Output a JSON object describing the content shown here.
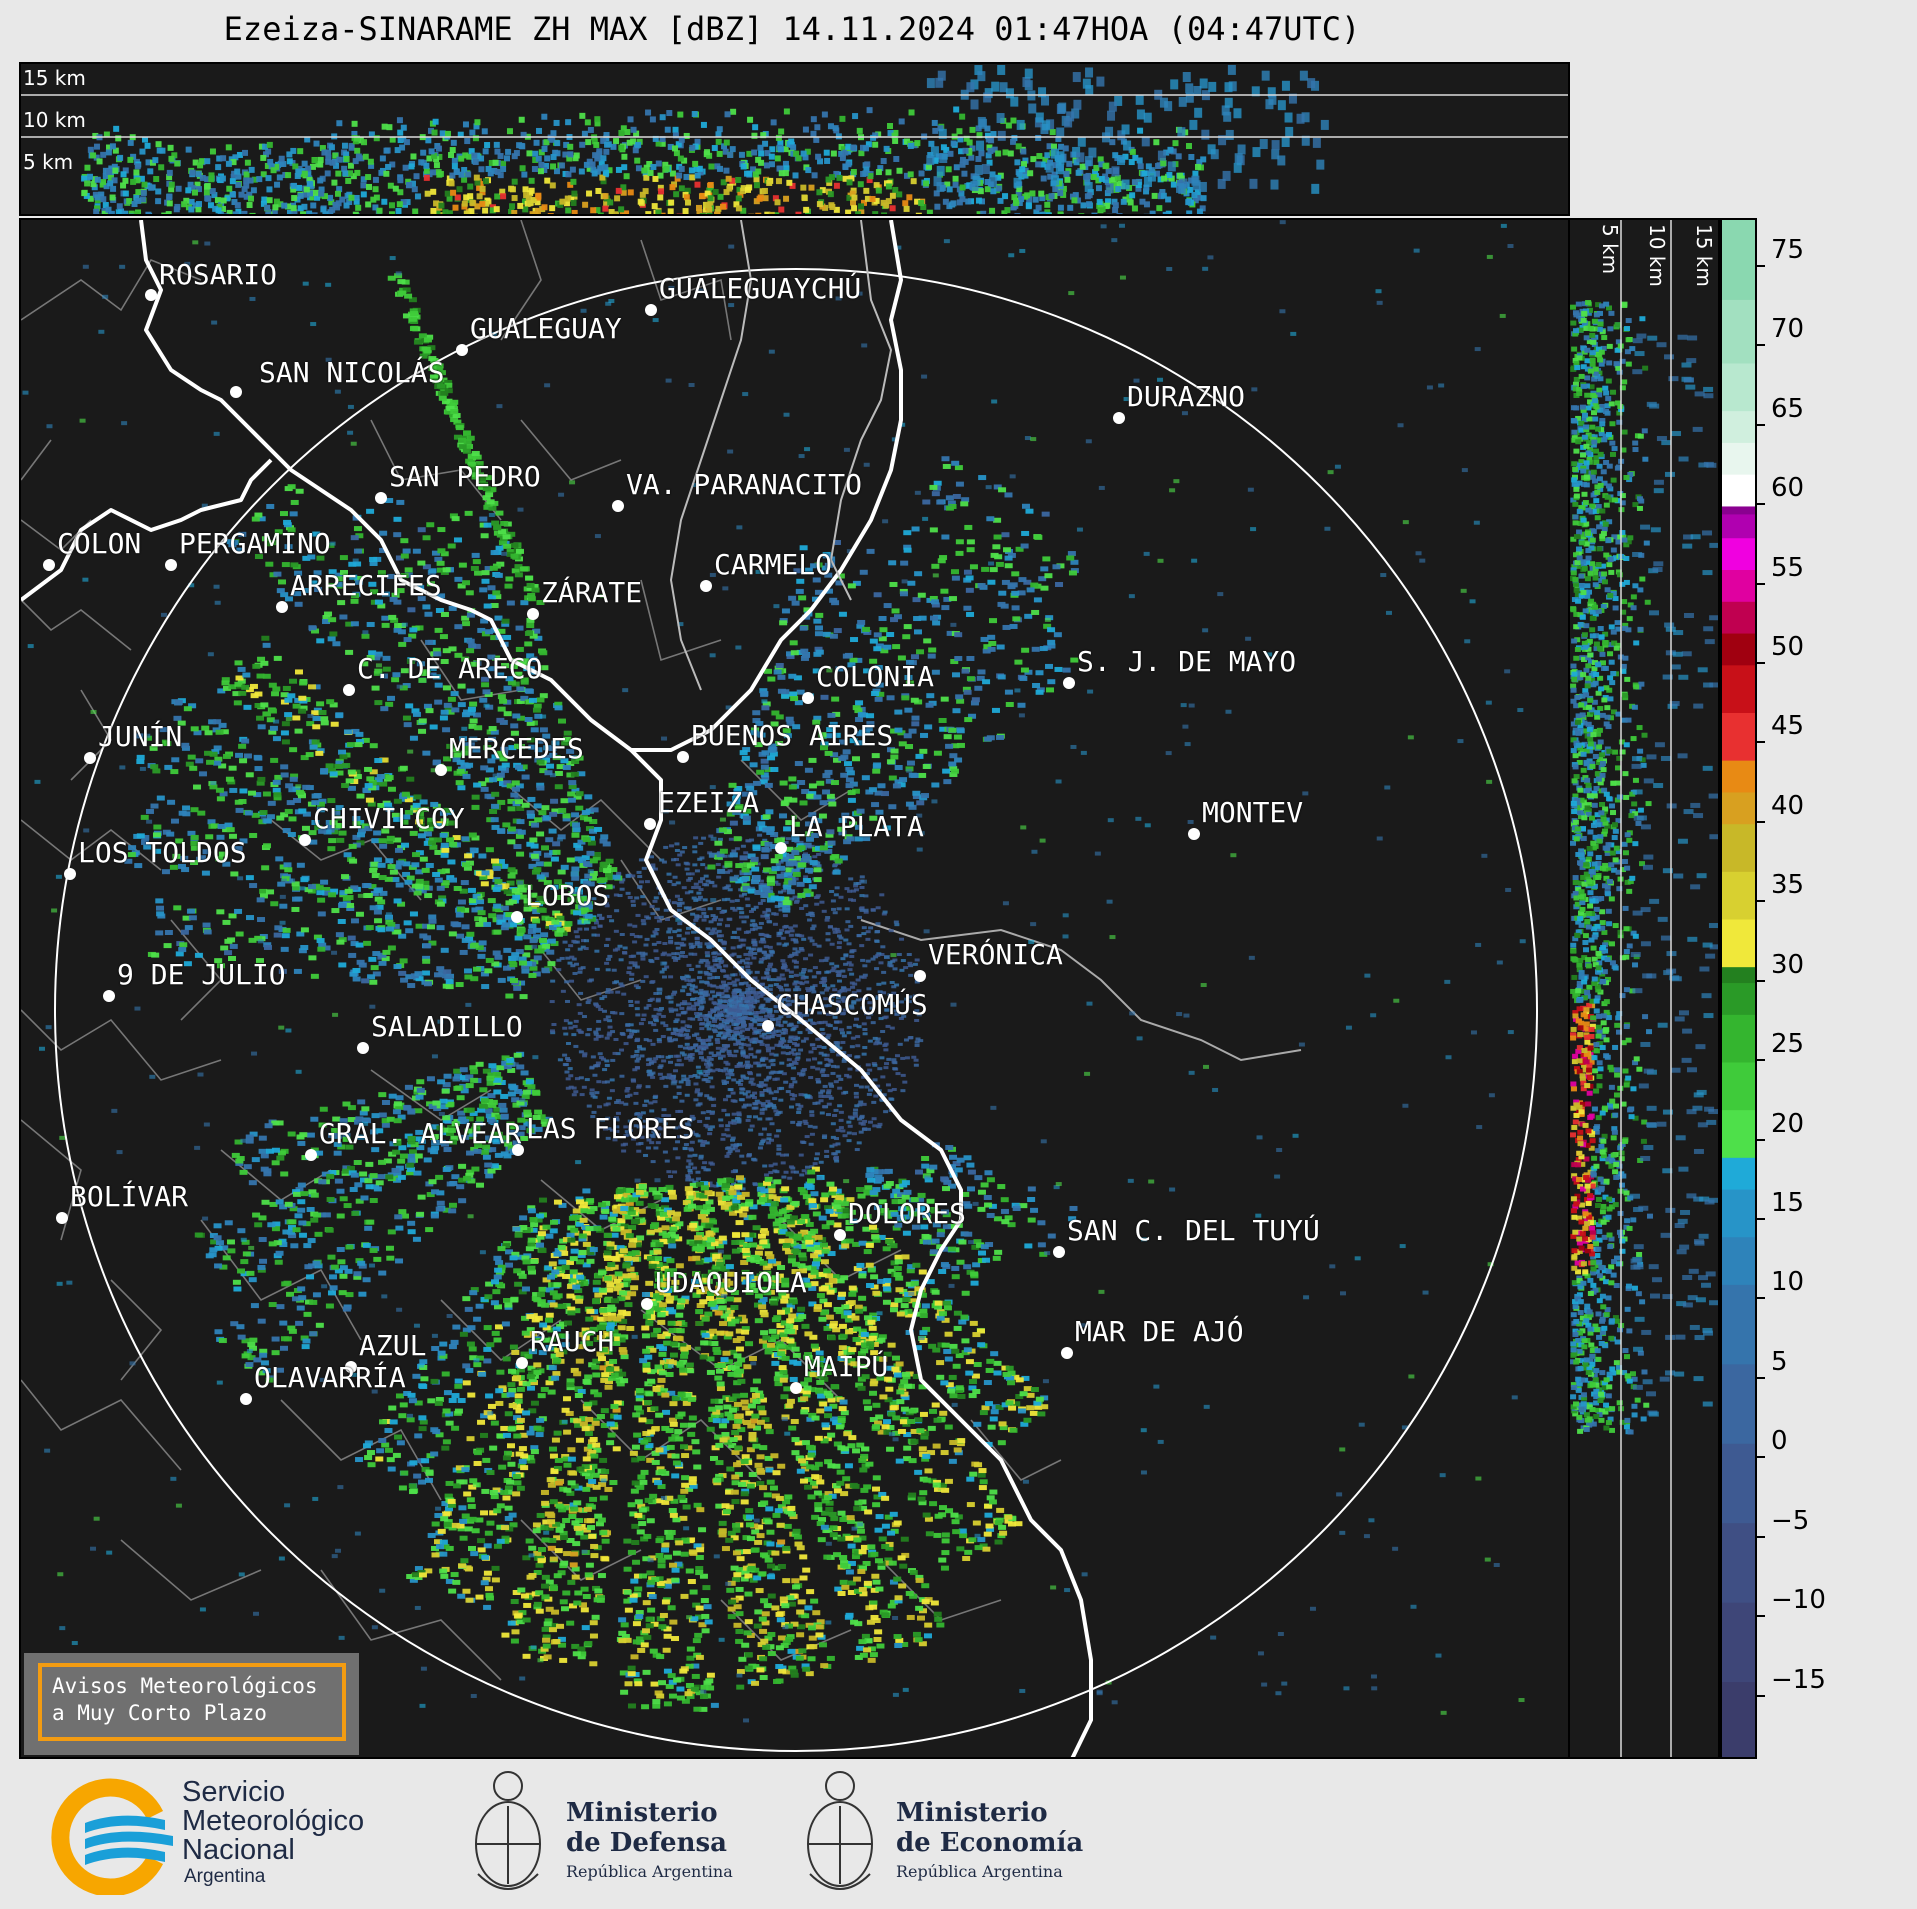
{
  "title": "Ezeiza-SINARAME ZH MAX [dBZ] 14.11.2024 01:47HOA (04:47UTC)",
  "top_panel": {
    "altitude_labels": [
      "15 km",
      "10 km",
      "5 km"
    ]
  },
  "side_panel": {
    "altitude_labels": [
      "5 km",
      "10 km",
      "15 km"
    ]
  },
  "colorbar": {
    "unit": "dBZ",
    "ticks": [
      "75",
      "70",
      "65",
      "60",
      "55",
      "50",
      "45",
      "40",
      "35",
      "30",
      "25",
      "20",
      "15",
      "10",
      "5",
      "0",
      "−5",
      "−10",
      "−15"
    ],
    "tick_values": [
      75,
      70,
      65,
      60,
      55,
      50,
      45,
      40,
      35,
      30,
      25,
      20,
      15,
      10,
      5,
      0,
      -5,
      -10,
      -15
    ],
    "range": [
      -20,
      77
    ]
  },
  "cities": [
    {
      "name": "ROSARIO"
    },
    {
      "name": "GUALEGUAYCHÚ"
    },
    {
      "name": "GUALEGUAY"
    },
    {
      "name": "SAN NICOLÁS"
    },
    {
      "name": "DURAZNO"
    },
    {
      "name": "SAN PEDRO"
    },
    {
      "name": "VA. PARANACITO"
    },
    {
      "name": "COLON"
    },
    {
      "name": "PERGAMINO"
    },
    {
      "name": "CARMELO"
    },
    {
      "name": "ARRECIFES"
    },
    {
      "name": "ZÁRATE"
    },
    {
      "name": "S. J. DE MAYO"
    },
    {
      "name": "C. DE ARECO"
    },
    {
      "name": "COLONIA"
    },
    {
      "name": "JUNÍN"
    },
    {
      "name": "BUENOS AIRES"
    },
    {
      "name": "MERCEDES"
    },
    {
      "name": "EZEIZA"
    },
    {
      "name": "MONTEV"
    },
    {
      "name": "CHIVILCOY"
    },
    {
      "name": "LA PLATA"
    },
    {
      "name": "LOS TOLDOS"
    },
    {
      "name": "LOBOS"
    },
    {
      "name": "VERÓNICA"
    },
    {
      "name": "9 DE JULIO"
    },
    {
      "name": "CHASCOMÚS"
    },
    {
      "name": "SALADILLO"
    },
    {
      "name": "GRAL. ALVEAR"
    },
    {
      "name": "LAS FLORES"
    },
    {
      "name": "BOLÍVAR"
    },
    {
      "name": "DOLORES"
    },
    {
      "name": "SAN C. DEL TUYÚ"
    },
    {
      "name": "UDAQUIOLA"
    },
    {
      "name": "RAUCH"
    },
    {
      "name": "AZUL"
    },
    {
      "name": "OLAVARRÍA"
    },
    {
      "name": "MAR DE AJÓ"
    },
    {
      "name": "MAIPÚ"
    }
  ],
  "avisos": {
    "line1": "Avisos Meteorológicos",
    "line2": "a Muy Corto Plazo"
  },
  "footer": {
    "smn_line1": "Servicio",
    "smn_line2": "Meteorológico",
    "smn_line3": "Nacional",
    "smn_line4": "Argentina",
    "defensa_title1": "Ministerio",
    "defensa_title2": "de Defensa",
    "defensa_sub": "República Argentina",
    "economia_title1": "Ministerio",
    "economia_title2": "de Economía",
    "economia_sub": "República Argentina"
  },
  "colors": {
    "map_bg": "#1a1a1a",
    "accent_orange": "#f39c12",
    "smn_blue": "#1a9fd8",
    "smn_orange": "#f7a600"
  }
}
